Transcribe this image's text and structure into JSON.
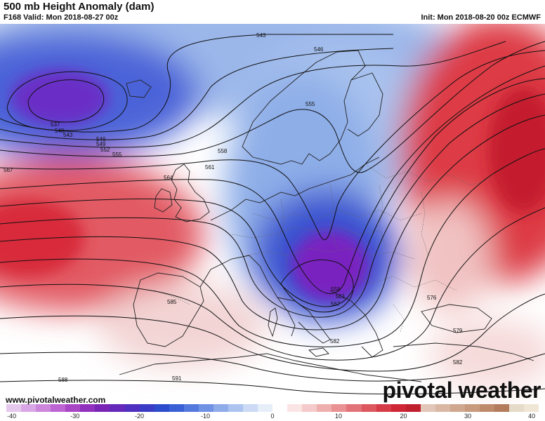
{
  "header": {
    "title": "500 mb Height Anomaly (dam)",
    "valid": "F168 Valid: Mon 2018-08-27 00z",
    "init": "Init: Mon 2018-08-20 00z ECMWF"
  },
  "footer": {
    "website": "www.pivotalweather.com",
    "brand": "pivotal weather"
  },
  "colorbar": {
    "ticks": [
      "-40",
      "-30",
      "-20",
      "-10",
      "0",
      "10",
      "20",
      "30",
      "40"
    ]
  },
  "contours": {
    "labels": {
      "c543": "543",
      "c546": "546",
      "c555": "555",
      "c537": "537",
      "c540": "540",
      "c543b": "543",
      "c546b": "546",
      "c549": "549",
      "c552": "552",
      "c555b": "555",
      "c558": "558",
      "c561": "561",
      "c564": "564",
      "c567": "567",
      "c558b": "558",
      "c561b": "561",
      "c567b": "567",
      "c585": "585",
      "c582": "582",
      "c576": "576",
      "c579": "579",
      "c582b": "582",
      "c588": "588",
      "c591": "591"
    }
  },
  "colors": {
    "negative_extreme": "#8a1fb8",
    "negative_strong": "#2a3fc9",
    "negative_light": "#c7d8f2",
    "neutral": "#ffffff",
    "positive_light": "#f2c9c9",
    "positive_strong": "#d9263a"
  }
}
